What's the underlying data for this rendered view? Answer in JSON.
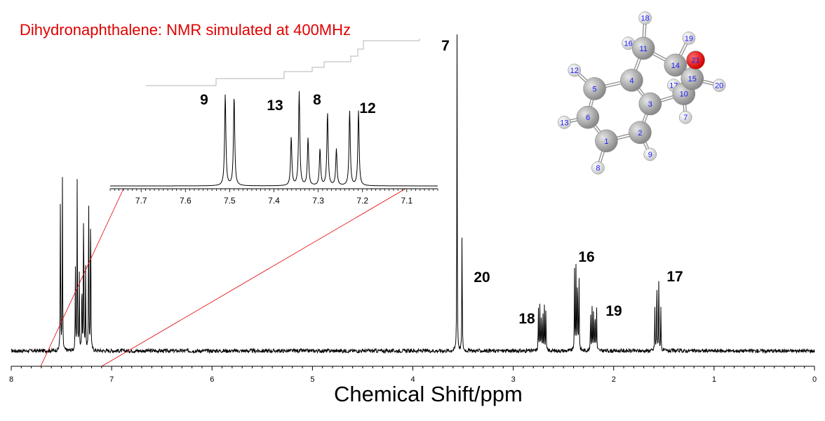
{
  "chart_data": {
    "type": "line",
    "title": "Dihydronaphthalene: NMR simulated at 400MHz",
    "xlabel": "Chemical Shift/ppm",
    "ylabel": "",
    "xlim": [
      8,
      0
    ],
    "x_reversed": true,
    "x_ticks": [
      "8",
      "7",
      "6",
      "5",
      "4",
      "3",
      "2",
      "1",
      "0"
    ],
    "peaks": [
      {
        "label": "7",
        "shift": 3.56,
        "multiplicity": "singlet",
        "rel_height": 1.0
      },
      {
        "label": "20",
        "shift": 3.51,
        "multiplicity": "singlet",
        "rel_height": 0.42
      },
      {
        "label": "18",
        "shift": 2.72,
        "multiplicity": "multiplet",
        "rel_height": 0.14
      },
      {
        "label": "16",
        "shift": 2.37,
        "multiplicity": "multiplet",
        "rel_height": 0.28
      },
      {
        "label": "19",
        "shift": 2.2,
        "multiplicity": "multiplet",
        "rel_height": 0.14
      },
      {
        "label": "17",
        "shift": 1.55,
        "multiplicity": "multiplet",
        "rel_height": 0.26
      },
      {
        "label": "9",
        "shift": 7.5,
        "multiplicity": "doublet",
        "rel_height": 0.54
      },
      {
        "label": "13",
        "shift": 7.34,
        "multiplicity": "triplet",
        "rel_height": 0.54
      },
      {
        "label": "8",
        "shift": 7.27,
        "multiplicity": "triplet",
        "rel_height": 0.54
      },
      {
        "label": "12",
        "shift": 7.21,
        "multiplicity": "doublet",
        "rel_height": 0.54
      }
    ],
    "inset": {
      "xlim": [
        7.77,
        7.03
      ],
      "x_ticks": [
        "7.7",
        "7.6",
        "7.5",
        "7.4",
        "7.3",
        "7.2",
        "7.1"
      ],
      "x_tick_values": [
        7.7,
        7.6,
        7.5,
        7.4,
        7.3,
        7.2,
        7.1
      ],
      "lines": [
        {
          "shift": 7.51,
          "height": 1.0
        },
        {
          "shift": 7.49,
          "height": 0.98
        },
        {
          "shift": 7.361,
          "height": 0.53
        },
        {
          "shift": 7.343,
          "height": 1.03
        },
        {
          "shift": 7.323,
          "height": 0.52
        },
        {
          "shift": 7.296,
          "height": 0.4
        },
        {
          "shift": 7.279,
          "height": 0.8
        },
        {
          "shift": 7.259,
          "height": 0.4
        },
        {
          "shift": 7.229,
          "height": 0.82
        },
        {
          "shift": 7.209,
          "height": 0.82
        }
      ],
      "labels": [
        {
          "label": "9",
          "shift": 7.5
        },
        {
          "label": "13",
          "shift": 7.35
        },
        {
          "label": "8",
          "shift": 7.28
        },
        {
          "label": "12",
          "shift": 7.21
        }
      ]
    },
    "molecule": {
      "atoms": [
        {
          "id": "1",
          "element": "C",
          "x": 0.55,
          "y": -0.35
        },
        {
          "id": "2",
          "element": "C",
          "x": 1.55,
          "y": -0.1
        },
        {
          "id": "3",
          "element": "C",
          "x": 1.85,
          "y": 0.75
        },
        {
          "id": "4",
          "element": "C",
          "x": 1.3,
          "y": 1.45
        },
        {
          "id": "5",
          "element": "C",
          "x": 0.2,
          "y": 1.2
        },
        {
          "id": "6",
          "element": "C",
          "x": 0.0,
          "y": 0.35
        },
        {
          "id": "7",
          "element": "H",
          "x": 2.9,
          "y": 0.35
        },
        {
          "id": "8",
          "element": "H",
          "x": 0.3,
          "y": -1.15
        },
        {
          "id": "9",
          "element": "H",
          "x": 1.85,
          "y": -0.75
        },
        {
          "id": "10",
          "element": "C",
          "x": 2.85,
          "y": 1.05
        },
        {
          "id": "11",
          "element": "C",
          "x": 1.65,
          "y": 2.4
        },
        {
          "id": "12",
          "element": "H",
          "x": -0.4,
          "y": 1.75
        },
        {
          "id": "13",
          "element": "H",
          "x": -0.7,
          "y": 0.2
        },
        {
          "id": "14",
          "element": "C",
          "x": 2.6,
          "y": 1.9
        },
        {
          "id": "15",
          "element": "C",
          "x": 3.1,
          "y": 1.5
        },
        {
          "id": "16",
          "element": "H",
          "x": 1.2,
          "y": 2.55
        },
        {
          "id": "17",
          "element": "H",
          "x": 2.55,
          "y": 1.3
        },
        {
          "id": "18",
          "element": "H",
          "x": 1.7,
          "y": 3.3
        },
        {
          "id": "19",
          "element": "H",
          "x": 3.0,
          "y": 2.7
        },
        {
          "id": "20",
          "element": "H",
          "x": 3.9,
          "y": 1.3
        },
        {
          "id": "21",
          "element": "O",
          "x": 3.2,
          "y": 2.05
        }
      ],
      "bonds": [
        [
          "1",
          "2"
        ],
        [
          "2",
          "3"
        ],
        [
          "3",
          "4"
        ],
        [
          "4",
          "5"
        ],
        [
          "5",
          "6"
        ],
        [
          "6",
          "1"
        ],
        [
          "1",
          "8"
        ],
        [
          "2",
          "9"
        ],
        [
          "5",
          "12"
        ],
        [
          "6",
          "13"
        ],
        [
          "3",
          "10"
        ],
        [
          "4",
          "11"
        ],
        [
          "11",
          "14"
        ],
        [
          "14",
          "15"
        ],
        [
          "15",
          "10"
        ],
        [
          "14",
          "21"
        ],
        [
          "15",
          "21"
        ],
        [
          "11",
          "16"
        ],
        [
          "11",
          "18"
        ],
        [
          "14",
          "19"
        ],
        [
          "10",
          "17"
        ],
        [
          "10",
          "7"
        ],
        [
          "15",
          "20"
        ]
      ]
    },
    "colors": {
      "spectrum": "#000000",
      "title": "#e00000",
      "zoom_lines": "#e00000",
      "carbon": "#8a8a8a",
      "hydrogen": "#c8c8c8",
      "oxygen": "#d40000",
      "atom_label": "#1a1aff",
      "integral": "#b5b5b5"
    }
  }
}
